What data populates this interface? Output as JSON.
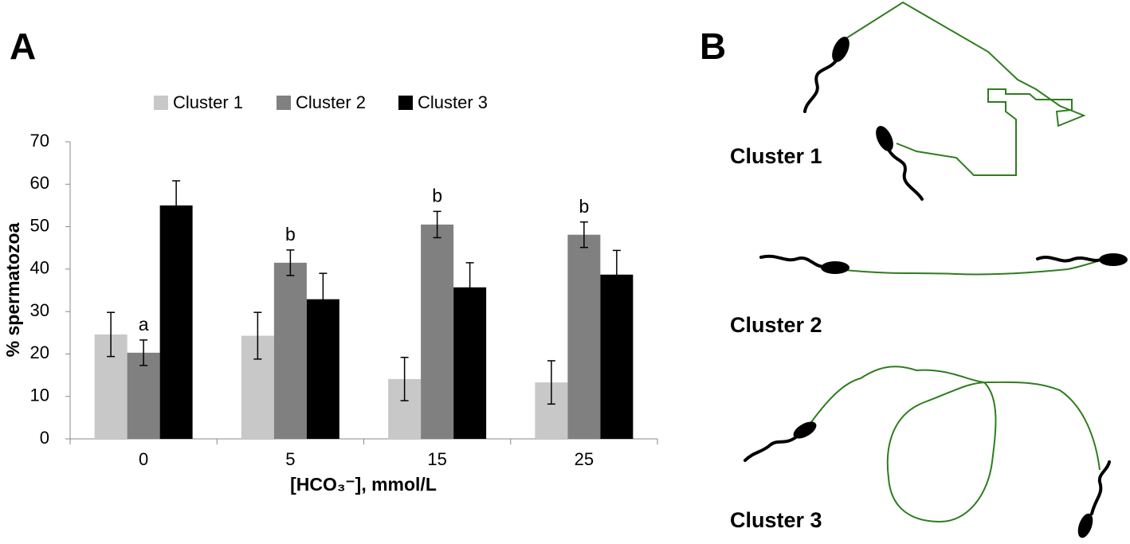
{
  "panel_a_label": "A",
  "panel_b_label": "B",
  "chart_data": {
    "type": "bar",
    "x_label": "[HCO₃⁻], mmol/L",
    "y_label": "% spermatozoa",
    "categories": [
      "0",
      "5",
      "15",
      "25"
    ],
    "series": [
      {
        "name": "Cluster 1",
        "color": "#c8c8c8",
        "values": [
          24.6,
          24.3,
          14.1,
          13.3
        ],
        "errors": [
          5.2,
          5.5,
          5.1,
          5.1
        ]
      },
      {
        "name": "Cluster 2",
        "color": "#808080",
        "values": [
          20.3,
          41.5,
          50.5,
          48.1
        ],
        "errors": [
          3.0,
          3.0,
          3.1,
          3.0
        ]
      },
      {
        "name": "Cluster 3",
        "color": "#000000",
        "values": [
          55.0,
          32.9,
          35.7,
          38.7
        ],
        "errors": [
          5.8,
          6.1,
          5.8,
          5.7
        ]
      }
    ],
    "annotations": [
      "a",
      "b",
      "b",
      "b"
    ],
    "ylim": [
      0,
      70
    ],
    "yticks": [
      0,
      10,
      20,
      30,
      40,
      50,
      60,
      70
    ],
    "grid": false,
    "legend": "top"
  },
  "panel_b": {
    "labels": [
      "Cluster 1",
      "Cluster 2",
      "Cluster 3"
    ]
  }
}
